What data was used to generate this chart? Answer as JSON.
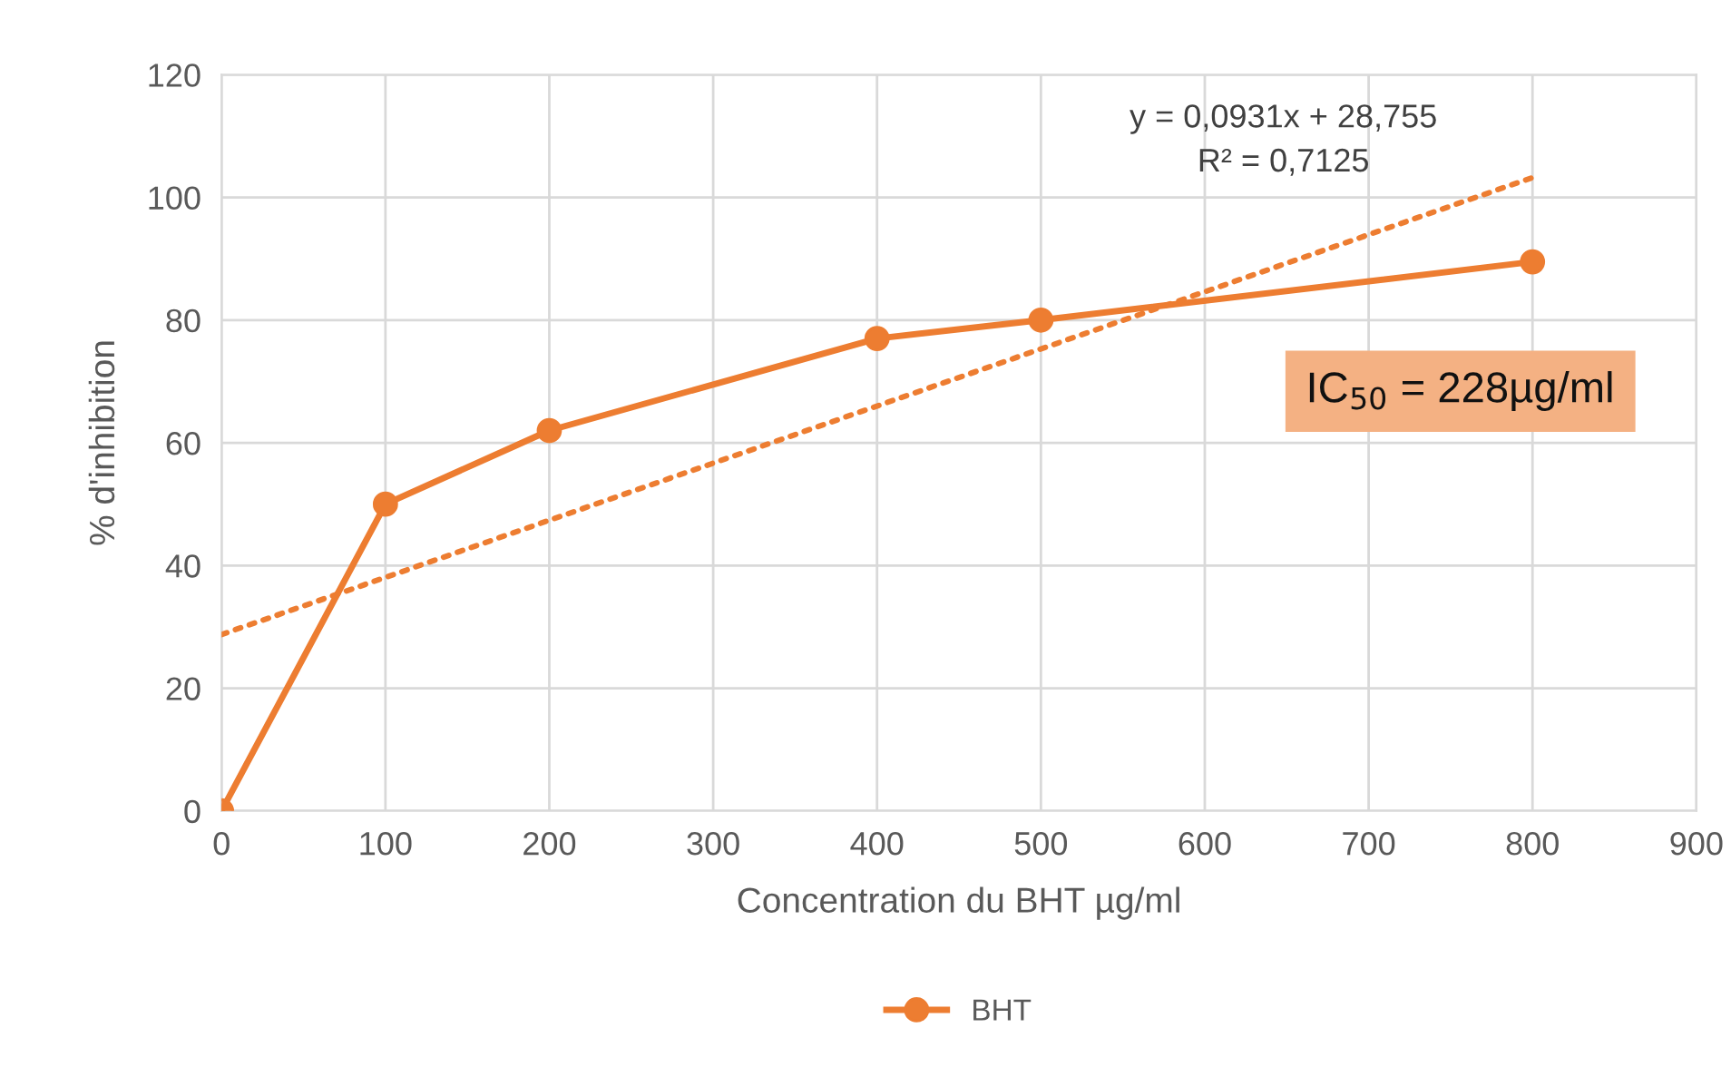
{
  "chart_data": {
    "type": "line",
    "xlabel": "Concentration du BHT µg/ml",
    "ylabel": "% d'inhibition",
    "xlim": [
      0,
      900
    ],
    "xticks": [
      0,
      100,
      200,
      300,
      400,
      500,
      600,
      700,
      800,
      900
    ],
    "ylim": [
      0,
      120
    ],
    "yticks": [
      0,
      20,
      40,
      60,
      80,
      100,
      120
    ],
    "grid": true,
    "legend": "bottom",
    "marker": "circle",
    "line_style": "solid",
    "series": [
      {
        "name": "BHT",
        "color": "#ed7d31",
        "x": [
          0,
          100,
          200,
          400,
          500,
          800
        ],
        "values": [
          0,
          50,
          62,
          77,
          80,
          89.5
        ]
      },
      {
        "color": "#ed7d31",
        "type": "line",
        "x": [
          0,
          800
        ],
        "values": [
          28.755,
          103.235
        ],
        "line_style": "dotted",
        "marker": "none"
      }
    ],
    "annotations": [
      "y = 0,0931x + 28,755",
      "R² = 0,7125",
      "IC$_{50}$ = 228µg/ml"
    ]
  }
}
